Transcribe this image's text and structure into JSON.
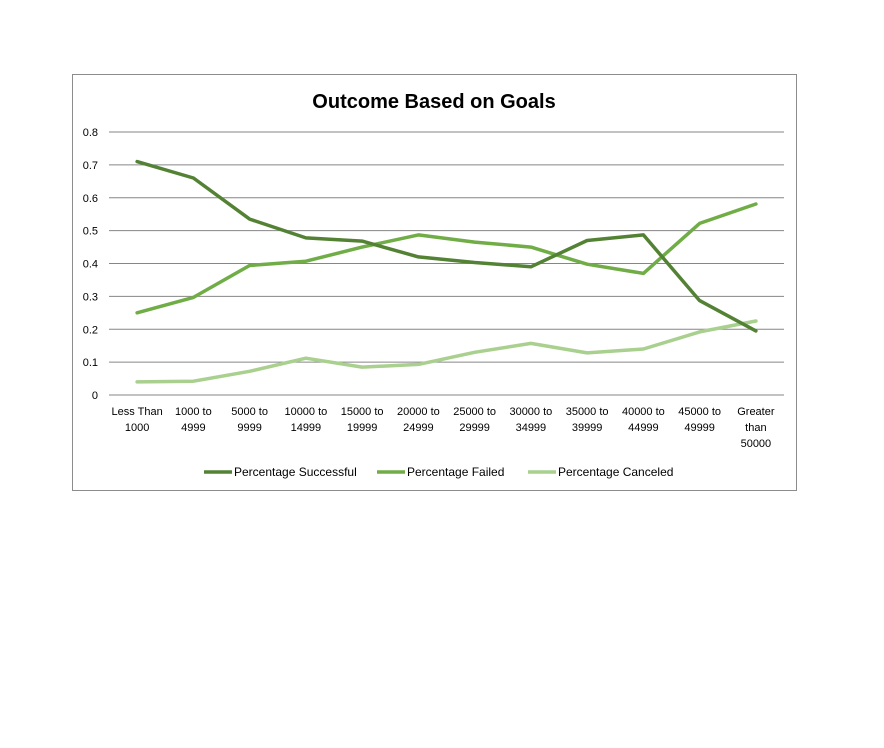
{
  "chart_data": {
    "type": "line",
    "title": "Outcome Based on Goals",
    "xlabel": "",
    "ylabel": "",
    "ylim": [
      0,
      0.8
    ],
    "yticks": [
      "0",
      "0.1",
      "0.2",
      "0.3",
      "0.4",
      "0.5",
      "0.6",
      "0.7",
      "0.8"
    ],
    "grid": true,
    "legend_position": "bottom",
    "categories": [
      [
        "Less Than",
        "1000"
      ],
      [
        "1000 to",
        "4999"
      ],
      [
        "5000 to",
        "9999"
      ],
      [
        "10000 to",
        "14999"
      ],
      [
        "15000 to",
        "19999"
      ],
      [
        "20000 to",
        "24999"
      ],
      [
        "25000 to",
        "29999"
      ],
      [
        "30000 to",
        "34999"
      ],
      [
        "35000 to",
        "39999"
      ],
      [
        "40000 to",
        "44999"
      ],
      [
        "45000 to",
        "49999"
      ],
      [
        "Greater",
        "than",
        "50000"
      ]
    ],
    "series": [
      {
        "name": "Percentage Successful",
        "color": "#548235",
        "values": [
          0.71,
          0.66,
          0.535,
          0.478,
          0.468,
          0.42,
          0.403,
          0.39,
          0.47,
          0.487,
          0.287,
          0.195
        ]
      },
      {
        "name": "Percentage Failed",
        "color": "#70ad47",
        "values": [
          0.25,
          0.297,
          0.394,
          0.407,
          0.45,
          0.487,
          0.465,
          0.45,
          0.398,
          0.37,
          0.522,
          0.581
        ]
      },
      {
        "name": "Percentage Canceled",
        "color": "#a9d08e",
        "values": [
          0.04,
          0.042,
          0.072,
          0.112,
          0.085,
          0.093,
          0.13,
          0.157,
          0.128,
          0.14,
          0.192,
          0.225
        ]
      }
    ]
  }
}
